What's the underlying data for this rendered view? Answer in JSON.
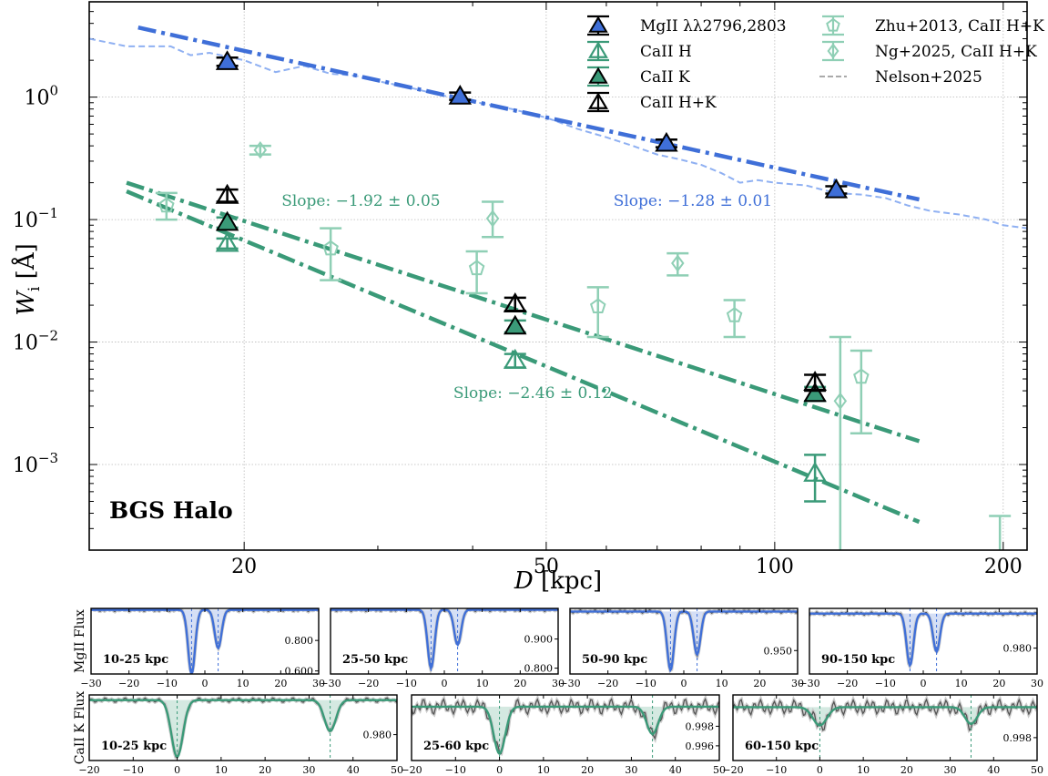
{
  "colors": {
    "mgii": "#3f6fd8",
    "mgii_light": "#8fb0f2",
    "caii": "#3a9a78",
    "caii_light": "#8fcfb5",
    "black": "#000000",
    "grid": "#b9b9b9",
    "spec_data": "#555555",
    "nelson": "#aaaaaa"
  },
  "chart_data": [
    {
      "type": "scatter",
      "scale": "log-log",
      "title": "",
      "panel_label": "BGS Halo",
      "xlabel": "D [kpc]",
      "ylabel_main": "W",
      "ylabel_sub": "i",
      "ylabel_unit": "[Å]",
      "xlim": [
        12.5,
        215
      ],
      "ylim": [
        0.0002,
        6
      ],
      "x_ticks": [
        20,
        50,
        100,
        200
      ],
      "x_tick_labels": [
        "20",
        "50",
        "100",
        "200"
      ],
      "y_ticks": [
        0.001,
        0.01,
        0.1,
        1
      ],
      "y_tick_labels": [
        {
          "base": "10",
          "exp": "−3"
        },
        {
          "base": "10",
          "exp": "−2"
        },
        {
          "base": "10",
          "exp": "−1"
        },
        {
          "base": "10",
          "exp": "0"
        }
      ],
      "grid": true,
      "legend_position": "top-right",
      "legend": [
        {
          "label": "MgII λλ2796,2803",
          "marker": "triangle-filled",
          "color": "mgii"
        },
        {
          "label": "CaII H",
          "marker": "triangle-open",
          "color": "caii"
        },
        {
          "label": "CaII K",
          "marker": "triangle-filled",
          "color": "caii"
        },
        {
          "label": "CaII H+K",
          "marker": "triangle-open",
          "color": "black"
        },
        {
          "label": "Zhu+2013, CaII H+K",
          "marker": "pentagon-open",
          "color": "caii_light"
        },
        {
          "label": "Ng+2025, CaII H+K",
          "marker": "diamond-open",
          "color": "caii_light"
        },
        {
          "label": "Nelson+2025",
          "marker": "dashed-line",
          "color": "nelson"
        }
      ],
      "series": [
        {
          "name": "MgII λλ2796,2803",
          "marker": "triangle-filled",
          "color": "mgii",
          "points": [
            {
              "x": 19.0,
              "y": 1.95,
              "err": 0.15
            },
            {
              "x": 38.5,
              "y": 1.02,
              "err": 0.07
            },
            {
              "x": 72.0,
              "y": 0.42,
              "err": 0.03
            },
            {
              "x": 120.5,
              "y": 0.175,
              "err": 0.012
            }
          ]
        },
        {
          "name": "CaII H",
          "marker": "triangle-open",
          "color": "caii",
          "points": [
            {
              "x": 19.0,
              "y": 0.064,
              "err": 0.006
            },
            {
              "x": 45.5,
              "y": 0.0071,
              "err": 0.0009
            },
            {
              "x": 113.0,
              "y": 0.00085,
              "err": 0.00035
            }
          ]
        },
        {
          "name": "CaII K",
          "marker": "triangle-filled",
          "color": "caii",
          "points": [
            {
              "x": 19.0,
              "y": 0.095,
              "err": 0.009
            },
            {
              "x": 45.5,
              "y": 0.0135,
              "err": 0.0015
            },
            {
              "x": 113.0,
              "y": 0.0038,
              "err": 0.0005
            }
          ]
        },
        {
          "name": "CaII H+K",
          "marker": "triangle-open",
          "color": "black",
          "points": [
            {
              "x": 19.0,
              "y": 0.158,
              "err": 0.018
            },
            {
              "x": 45.5,
              "y": 0.0205,
              "err": 0.0025
            },
            {
              "x": 113.0,
              "y": 0.0047,
              "err": 0.0007
            }
          ]
        },
        {
          "name": "Zhu+2013, CaII H+K",
          "marker": "pentagon-open",
          "color": "caii_light",
          "points": [
            {
              "x": 15.8,
              "y": 0.13,
              "lo": 0.1,
              "hi": 0.165
            },
            {
              "x": 26.0,
              "y": 0.058,
              "lo": 0.032,
              "hi": 0.085
            },
            {
              "x": 40.5,
              "y": 0.04,
              "lo": 0.025,
              "hi": 0.055
            },
            {
              "x": 58.5,
              "y": 0.0195,
              "lo": 0.011,
              "hi": 0.028
            },
            {
              "x": 88.5,
              "y": 0.0165,
              "lo": 0.011,
              "hi": 0.022
            },
            {
              "x": 130.0,
              "y": 0.0052,
              "lo": 0.0018,
              "hi": 0.0085
            },
            {
              "x": 198.0,
              "y": 0.00015,
              "lo": 0.0001,
              "hi": 0.00038
            }
          ]
        },
        {
          "name": "Ng+2025, CaII H+K",
          "marker": "diamond-open",
          "color": "caii_light",
          "points": [
            {
              "x": 21.0,
              "y": 0.37,
              "lo": 0.34,
              "hi": 0.4
            },
            {
              "x": 42.5,
              "y": 0.102,
              "lo": 0.072,
              "hi": 0.14
            },
            {
              "x": 74.5,
              "y": 0.044,
              "lo": 0.035,
              "hi": 0.053
            },
            {
              "x": 122.0,
              "y": 0.0033,
              "lo": 0.0001,
              "hi": 0.011
            }
          ]
        }
      ],
      "fits": [
        {
          "name": "MgII fit",
          "color": "mgii",
          "x": [
            14.5,
            155
          ],
          "y": [
            3.7,
            0.146
          ]
        },
        {
          "name": "CaII K fit",
          "color": "caii",
          "x": [
            14.0,
            155
          ],
          "y": [
            0.2,
            0.00155
          ]
        },
        {
          "name": "CaII H fit",
          "color": "caii",
          "x": [
            14.0,
            155
          ],
          "y": [
            0.17,
            0.00034
          ]
        }
      ],
      "nelson2025": {
        "x": [
          12.5,
          14,
          16,
          17,
          18,
          20,
          22,
          24,
          26,
          28,
          30,
          33,
          36,
          40,
          45,
          50,
          55,
          60,
          65,
          70,
          75,
          80,
          85,
          90,
          95,
          100,
          110,
          120,
          130,
          140,
          150,
          160,
          175,
          190,
          200,
          215
        ],
        "y": [
          3.0,
          2.6,
          2.6,
          2.2,
          2.3,
          2.0,
          1.6,
          1.8,
          1.55,
          1.5,
          1.35,
          1.2,
          1.05,
          0.92,
          0.8,
          0.68,
          0.55,
          0.47,
          0.4,
          0.34,
          0.31,
          0.28,
          0.24,
          0.2,
          0.21,
          0.2,
          0.19,
          0.165,
          0.16,
          0.15,
          0.13,
          0.118,
          0.11,
          0.1,
          0.09,
          0.085
        ]
      },
      "annotations": [
        {
          "text": "Slope: −1.28 ± 0.01",
          "color": "mgii",
          "x": 78,
          "y": 0.13
        },
        {
          "text": "Slope: −1.92 ± 0.05",
          "color": "caii",
          "x": 28.5,
          "y": 0.13
        },
        {
          "text": "Slope: −2.46 ± 0.12",
          "color": "caii",
          "x": 48,
          "y": 0.0035
        }
      ]
    },
    {
      "type": "line",
      "ylabel": "MgII Flux",
      "panels": [
        {
          "label": "10-25 kpc",
          "xlim": [
            -30,
            30
          ],
          "ylim": [
            0.58,
            1.01
          ],
          "x_ticks": [
            -30,
            -20,
            -10,
            0,
            10,
            20,
            30
          ],
          "y_ticks": [
            0.6,
            0.8
          ],
          "y_tick_labels": [
            "0.600",
            "0.800"
          ],
          "lines": [
            -3.5,
            3.5
          ],
          "absorption": [
            {
              "center": -3.5,
              "depth": 0.42,
              "width": 0.9
            },
            {
              "center": 3.5,
              "depth": 0.25,
              "width": 0.9
            }
          ]
        },
        {
          "label": "25-50 kpc",
          "xlim": [
            -30,
            30
          ],
          "ylim": [
            0.78,
            1.005
          ],
          "x_ticks": [
            -30,
            -20,
            -10,
            0,
            10,
            20,
            30
          ],
          "y_ticks": [
            0.8,
            0.9
          ],
          "y_tick_labels": [
            "0.800",
            "0.900"
          ],
          "lines": [
            -3.5,
            3.5
          ],
          "absorption": [
            {
              "center": -3.5,
              "depth": 0.2,
              "width": 0.9
            },
            {
              "center": 3.5,
              "depth": 0.12,
              "width": 0.9
            }
          ]
        },
        {
          "label": "50-90 kpc",
          "xlim": [
            -30,
            30
          ],
          "ylim": [
            0.92,
            1.004
          ],
          "x_ticks": [
            -30,
            -20,
            -10,
            0,
            10,
            20,
            30
          ],
          "y_ticks": [
            0.95
          ],
          "y_tick_labels": [
            "0.950"
          ],
          "lines": [
            -3.5,
            3.5
          ],
          "absorption": [
            {
              "center": -3.5,
              "depth": 0.075,
              "width": 0.9
            },
            {
              "center": 3.5,
              "depth": 0.055,
              "width": 0.9
            }
          ]
        },
        {
          "label": "90-150 kpc",
          "xlim": [
            -30,
            30
          ],
          "ylim": [
            0.965,
            1.003
          ],
          "x_ticks": [
            -30,
            -20,
            -10,
            0,
            10,
            20,
            30
          ],
          "y_ticks": [
            0.98
          ],
          "y_tick_labels": [
            "0.980"
          ],
          "lines": [
            -3.5,
            3.5
          ],
          "absorption": [
            {
              "center": -3.5,
              "depth": 0.03,
              "width": 0.9
            },
            {
              "center": 3.5,
              "depth": 0.022,
              "width": 0.9
            }
          ]
        }
      ]
    },
    {
      "type": "line",
      "ylabel": "CaII K Flux",
      "panels": [
        {
          "label": "10-25 kpc",
          "xlim": [
            -20,
            50
          ],
          "ylim": [
            0.965,
            1.003
          ],
          "x_ticks": [
            -20,
            -10,
            0,
            10,
            20,
            30,
            40,
            50
          ],
          "y_ticks": [
            0.98
          ],
          "y_tick_labels": [
            "0.980"
          ],
          "lines": [
            0,
            34.8
          ],
          "absorption": [
            {
              "center": 0,
              "depth": 0.033,
              "width": 1.3
            },
            {
              "center": 34.8,
              "depth": 0.018,
              "width": 1.3
            }
          ]
        },
        {
          "label": "25-60 kpc",
          "xlim": [
            -20,
            50
          ],
          "ylim": [
            0.9945,
            1.0012
          ],
          "x_ticks": [
            -20,
            -10,
            0,
            10,
            20,
            30,
            40,
            50
          ],
          "y_ticks": [
            0.996,
            0.998
          ],
          "y_tick_labels": [
            "0.996",
            "0.998"
          ],
          "lines": [
            0,
            34.8
          ],
          "absorption": [
            {
              "center": 0,
              "depth": 0.0048,
              "width": 1.3
            },
            {
              "center": 34.8,
              "depth": 0.0028,
              "width": 1.3
            }
          ]
        },
        {
          "label": "60-150 kpc",
          "xlim": [
            -20,
            50
          ],
          "ylim": [
            0.9965,
            1.0008
          ],
          "x_ticks": [
            -20,
            -10,
            0,
            10,
            20,
            30,
            40,
            50
          ],
          "y_ticks": [
            0.998
          ],
          "y_tick_labels": [
            "0.998"
          ],
          "lines": [
            0,
            34.8
          ],
          "absorption": [
            {
              "center": 0,
              "depth": 0.0012,
              "width": 1.6
            },
            {
              "center": 34.8,
              "depth": 0.0011,
              "width": 1.4
            }
          ]
        }
      ]
    }
  ]
}
